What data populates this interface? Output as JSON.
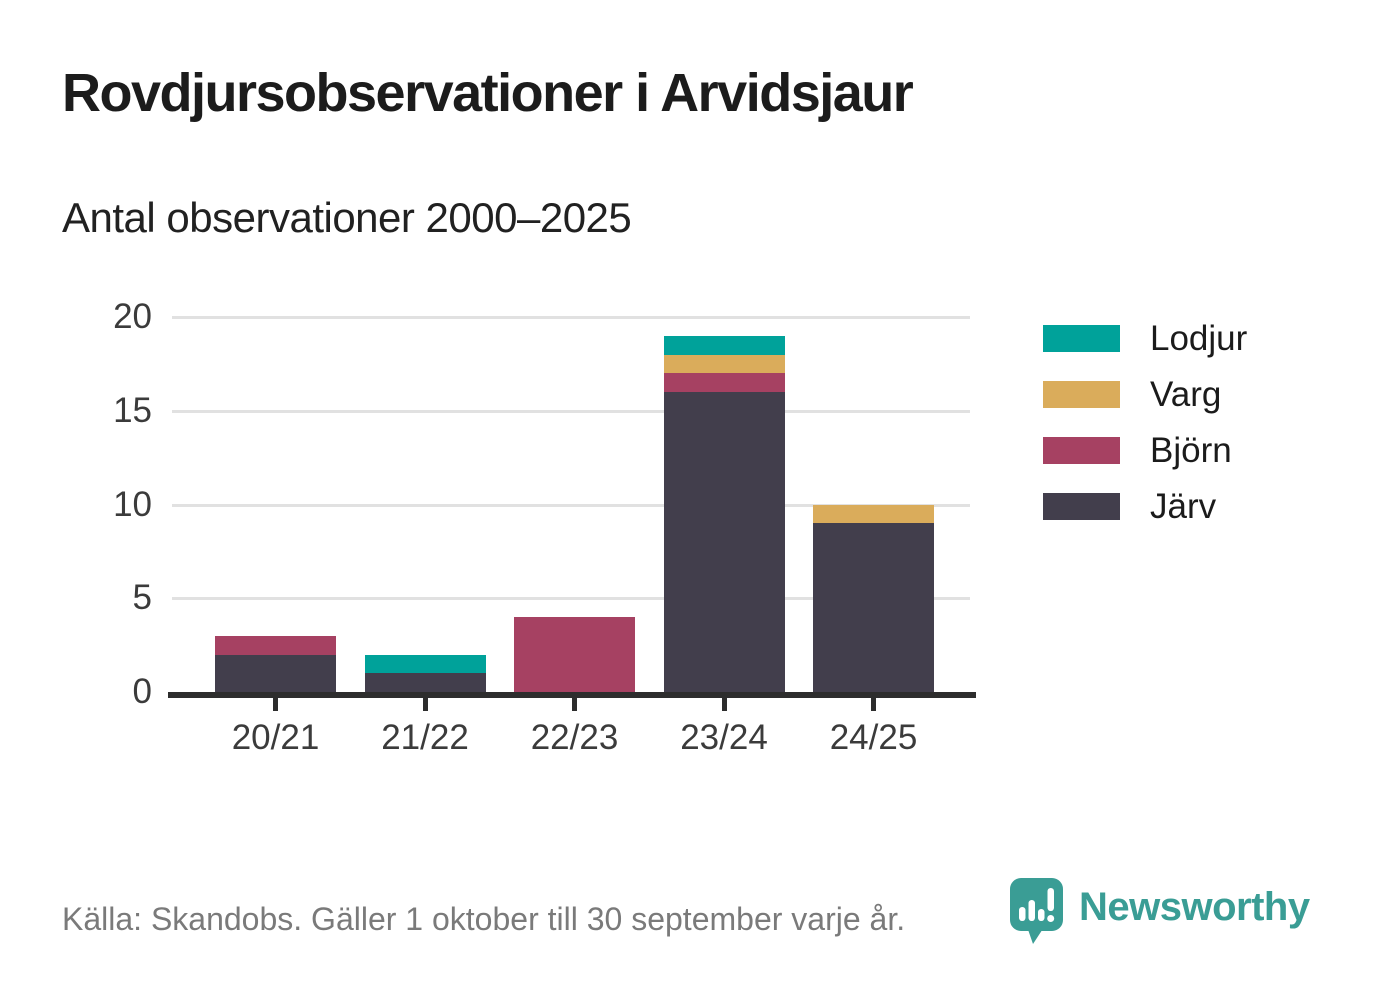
{
  "header": {
    "title": "Rovdjursobservationer i Arvidsjaur",
    "subtitle": "Antal observationer 2000–2025"
  },
  "footer": {
    "source": "Källa: Skandobs. Gäller 1 oktober till 30 september varje år.",
    "brand": "Newsworthy"
  },
  "icons": {
    "newsworthy_logo": "speech-bubble-with-bar-chart-and-exclamation-icon"
  },
  "colors": {
    "background": "#ffffff",
    "grid": "#e1e1e1",
    "axis_line": "#2d2d2d",
    "axis_text": "#3b3b3b",
    "legend_text": "#1b1b1b",
    "source_text": "#7a7a7a",
    "brand_teal": "#3a9d95"
  },
  "chart_data": {
    "type": "bar",
    "stacked": true,
    "title": "Rovdjursobservationer i Arvidsjaur",
    "subtitle": "Antal observationer 2000–2025",
    "categories": [
      "20/21",
      "21/22",
      "22/23",
      "23/24",
      "24/25"
    ],
    "series": [
      {
        "name": "Lodjur",
        "color": "#00a29a",
        "values": [
          0,
          1,
          0,
          1,
          0
        ]
      },
      {
        "name": "Varg",
        "color": "#daac5b",
        "values": [
          0,
          0,
          0,
          1,
          1
        ]
      },
      {
        "name": "Björn",
        "color": "#a64162",
        "values": [
          1,
          0,
          4,
          1,
          0
        ]
      },
      {
        "name": "Järv",
        "color": "#423e4c",
        "values": [
          2,
          1,
          0,
          16,
          9
        ]
      }
    ],
    "totals": [
      3,
      2,
      4,
      19,
      10
    ],
    "stack_order_bottom_to_top": [
      "Järv",
      "Björn",
      "Varg",
      "Lodjur"
    ],
    "xlabel": "",
    "ylabel": "",
    "ylim": [
      0,
      20
    ],
    "yticks": [
      0,
      5,
      10,
      15,
      20
    ],
    "grid": true,
    "legend_position": "right"
  }
}
